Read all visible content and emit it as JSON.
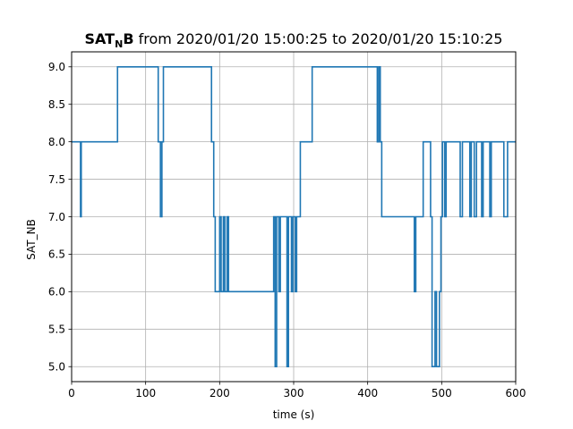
{
  "chart_data": {
    "type": "line",
    "step": true,
    "title": {
      "bold_main": "SAT",
      "bold_sub": "N",
      "bold_tail": "B",
      "rest": " from 2020/01/20 15:00:25 to 2020/01/20 15:10:25"
    },
    "xlabel": "time (s)",
    "ylabel": "SAT_NB",
    "xlim": [
      0,
      600
    ],
    "ylim": [
      4.8,
      9.2
    ],
    "xticks": [
      0,
      100,
      200,
      300,
      400,
      500,
      600
    ],
    "yticks": [
      5.0,
      5.5,
      6.0,
      6.5,
      7.0,
      7.5,
      8.0,
      8.5,
      9.0
    ],
    "ytick_labels": [
      "5.0",
      "5.5",
      "6.0",
      "6.5",
      "7.0",
      "7.5",
      "8.0",
      "8.5",
      "9.0"
    ],
    "grid": true,
    "series": [
      {
        "color": "#1f77b4",
        "x": [
          0,
          12,
          13,
          62,
          117,
          120,
          122,
          124,
          189,
          192,
          194,
          200,
          202,
          205,
          207,
          210,
          212,
          272,
          273,
          275,
          277,
          280,
          282,
          291,
          293,
          297,
          299,
          302,
          304,
          309,
          325,
          413,
          415,
          417,
          419,
          463,
          465,
          475,
          485,
          487,
          491,
          493,
          497,
          499,
          501,
          504,
          506,
          510,
          525,
          528,
          538,
          540,
          544,
          547,
          554,
          556,
          565,
          567,
          584,
          589,
          593,
          600
        ],
        "y": [
          8,
          7,
          8,
          9,
          8,
          7,
          8,
          9,
          8,
          7,
          6,
          7,
          6,
          7,
          6,
          7,
          6,
          6,
          7,
          5,
          7,
          6,
          7,
          5,
          7,
          6,
          7,
          6,
          7,
          8,
          9,
          8,
          9,
          8,
          7,
          6,
          7,
          8,
          7,
          5,
          6,
          5,
          6,
          7,
          8,
          7,
          8,
          8,
          7,
          8,
          7,
          8,
          7,
          8,
          7,
          8,
          7,
          8,
          7,
          8,
          8,
          8
        ]
      }
    ]
  }
}
